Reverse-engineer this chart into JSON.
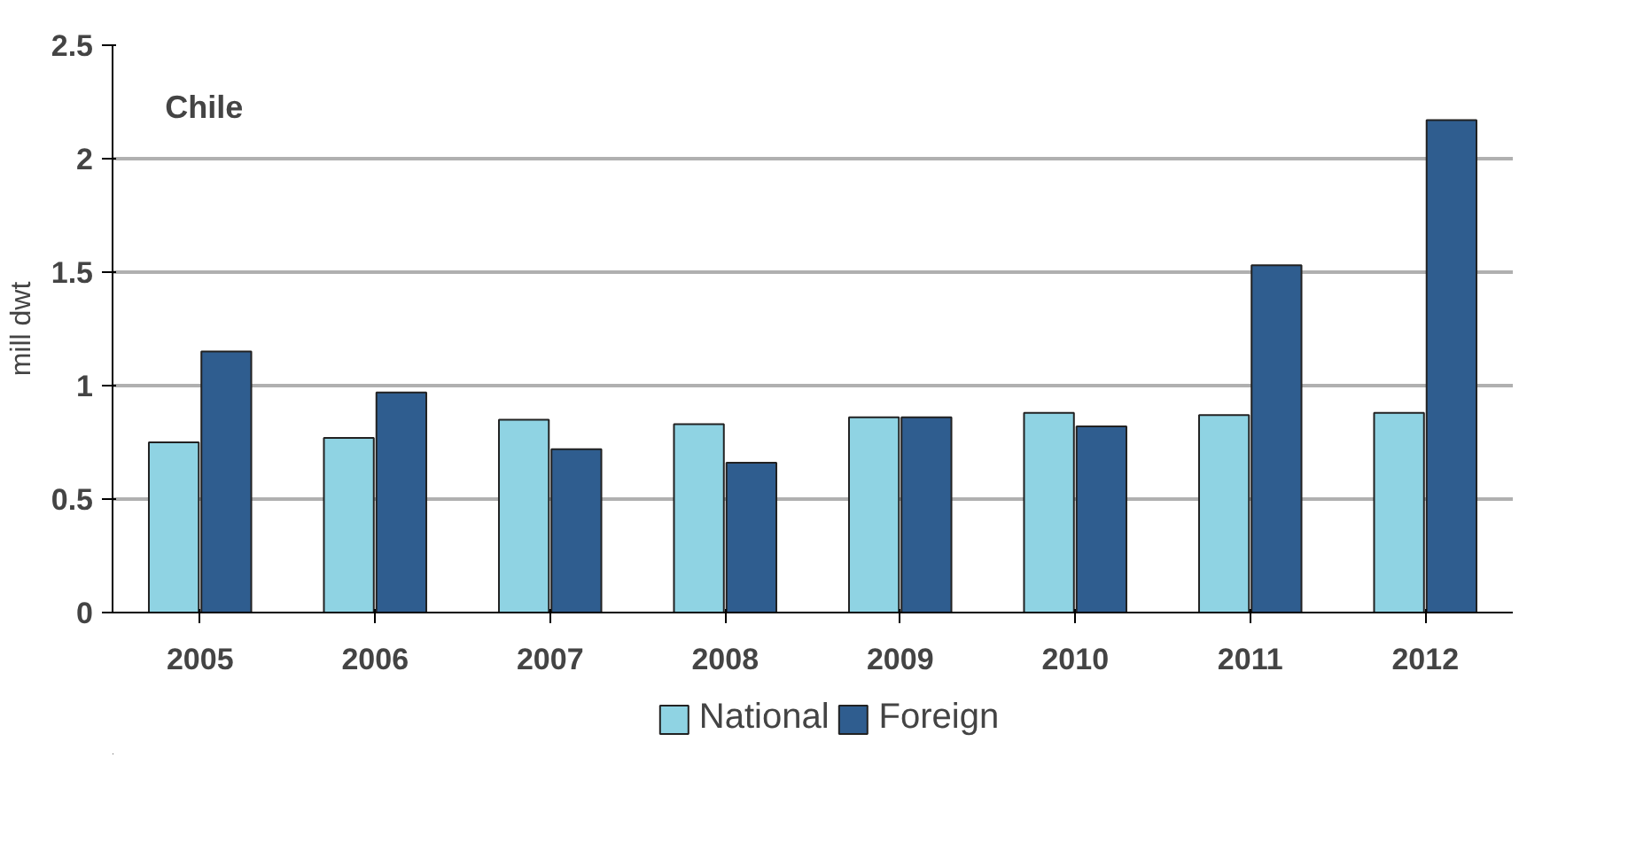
{
  "chart_data": {
    "type": "bar",
    "title": "Chile",
    "ylabel": "mill dwt",
    "categories": [
      "2005",
      "2006",
      "2007",
      "2008",
      "2009",
      "2010",
      "2011",
      "2012"
    ],
    "series": [
      {
        "name": "National",
        "color": "#8fd3e3",
        "values": [
          0.75,
          0.77,
          0.85,
          0.83,
          0.86,
          0.88,
          0.87,
          0.88
        ]
      },
      {
        "name": "Foreign",
        "color": "#2f5d8f",
        "values": [
          1.15,
          0.97,
          0.72,
          0.66,
          0.86,
          0.82,
          1.53,
          2.17
        ]
      }
    ],
    "ylim": [
      0,
      2.5
    ],
    "yticks": [
      0,
      0.5,
      1,
      1.5,
      2,
      2.5
    ],
    "grid": "y",
    "legend": "bottom"
  }
}
